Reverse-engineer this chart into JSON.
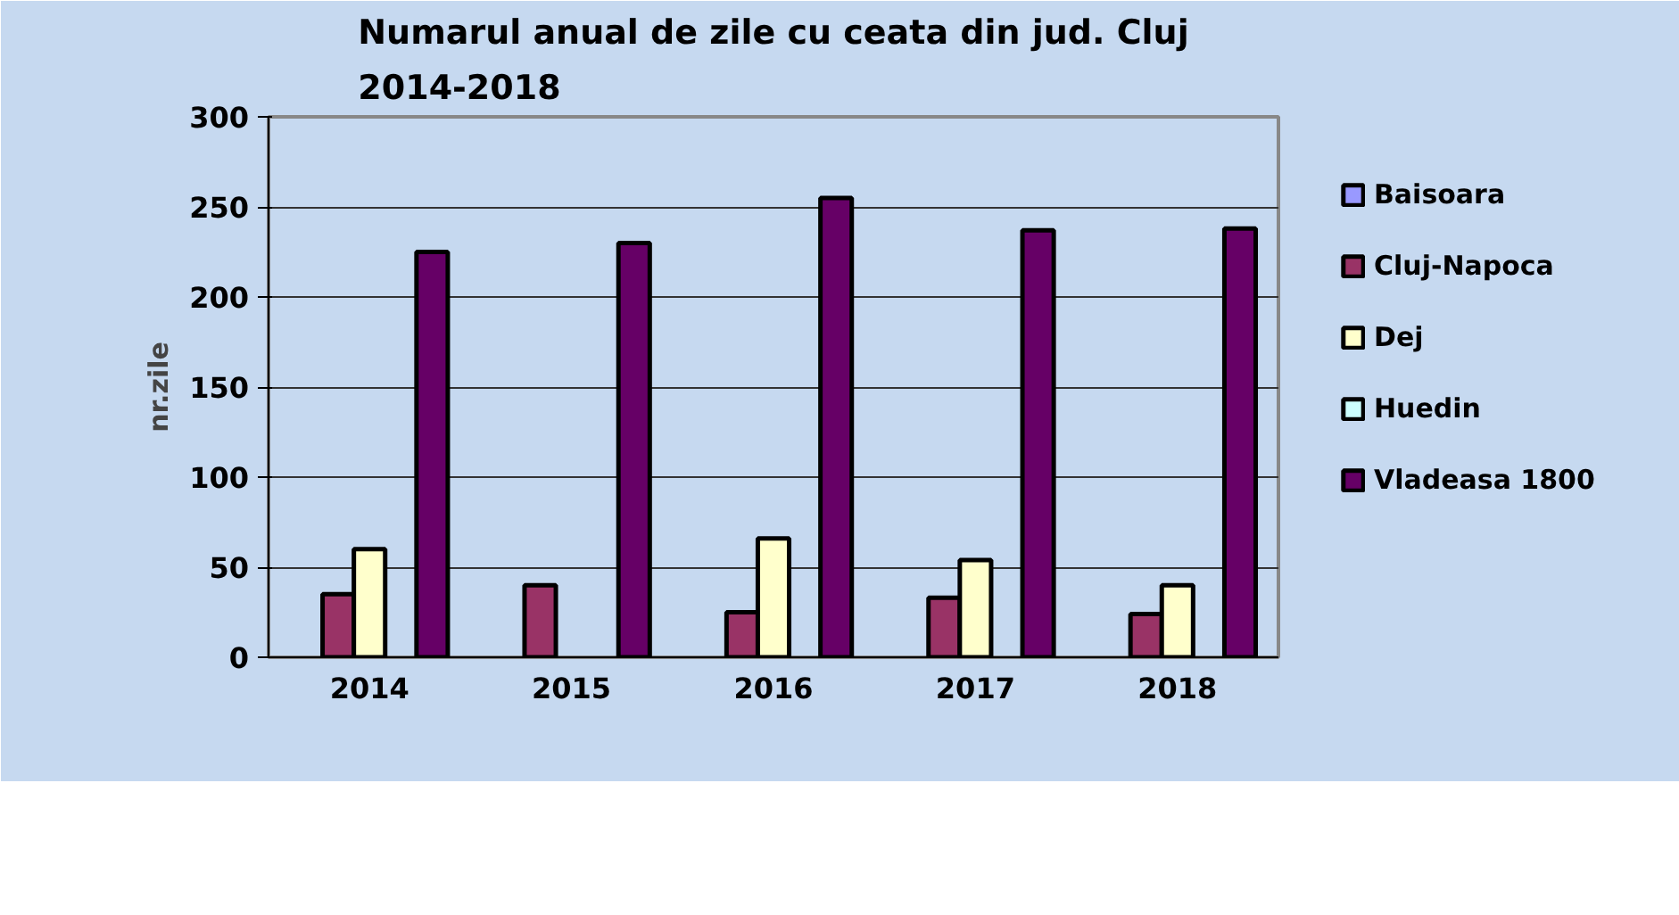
{
  "chart_data": {
    "type": "bar",
    "title": "Numarul anual de zile cu ceata din jud. Cluj\n2014-2018",
    "ylabel": "nr.zile",
    "categories": [
      "2014",
      "2015",
      "2016",
      "2017",
      "2018"
    ],
    "series": [
      {
        "name": "Baisoara",
        "color": "#9999ff",
        "values": [
          null,
          null,
          null,
          null,
          null
        ]
      },
      {
        "name": "Cluj-Napoca",
        "color": "#993366",
        "values": [
          35,
          40,
          25,
          33,
          24
        ]
      },
      {
        "name": "Dej",
        "color": "#ffffcc",
        "values": [
          60,
          null,
          66,
          54,
          40
        ]
      },
      {
        "name": "Huedin",
        "color": "#ccffff",
        "values": [
          null,
          null,
          null,
          null,
          null
        ]
      },
      {
        "name": "Vladeasa 1800",
        "color": "#660066",
        "values": [
          225,
          230,
          255,
          237,
          238
        ]
      }
    ],
    "ylim": [
      0,
      300
    ],
    "yticks": [
      0,
      50,
      100,
      150,
      200,
      250,
      300
    ],
    "grid": "y",
    "legend": "right"
  }
}
